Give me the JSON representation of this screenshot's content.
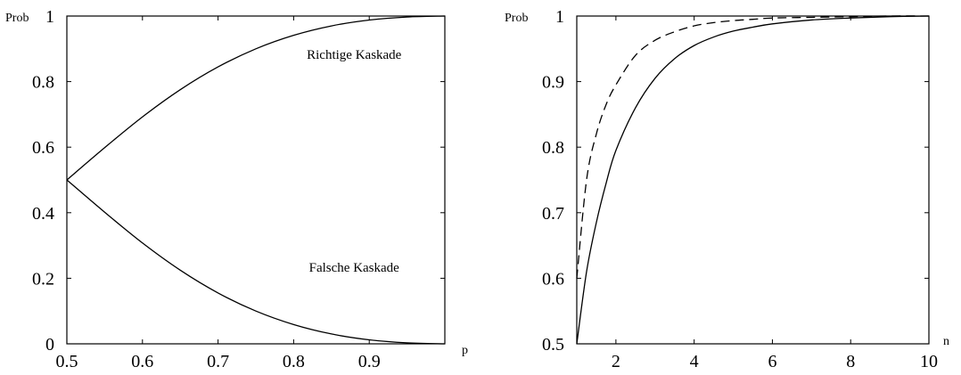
{
  "chart_data": [
    {
      "type": "line",
      "title": "",
      "xlabel": "p",
      "ylabel": "Prob",
      "xlim": [
        0.5,
        1.0
      ],
      "ylim": [
        0,
        1
      ],
      "xticks": [
        0.5,
        0.6,
        0.7,
        0.8,
        0.9
      ],
      "xtick_labels": [
        "0.5",
        "0.6",
        "0.7",
        "0.8",
        "0.9"
      ],
      "yticks": [
        0,
        0.2,
        0.4,
        0.6,
        0.8,
        1
      ],
      "ytick_labels": [
        "0",
        "0.2",
        "0.4",
        "0.6",
        "0.8",
        "1"
      ],
      "grid": false,
      "series": [
        {
          "x": [
            0.5,
            0.55,
            0.6,
            0.65,
            0.7,
            0.75,
            0.8,
            0.85,
            0.9,
            0.95,
            1.0
          ],
          "values": [
            0.5,
            0.5985,
            0.6923,
            0.7753,
            0.8448,
            0.9,
            0.9412,
            0.9699,
            0.9878,
            0.997,
            1.0
          ],
          "style": "solid"
        },
        {
          "x": [
            0.5,
            0.55,
            0.6,
            0.65,
            0.7,
            0.75,
            0.8,
            0.85,
            0.9,
            0.95,
            1.0
          ],
          "values": [
            0.5,
            0.4015,
            0.3077,
            0.2247,
            0.1552,
            0.1,
            0.0588,
            0.0301,
            0.0122,
            0.003,
            0.0
          ],
          "style": "solid"
        }
      ],
      "annotations": [
        {
          "text": "Richtige Kaskade",
          "x": 0.88,
          "y": 0.87
        },
        {
          "text": "Falsche Kaskade",
          "x": 0.88,
          "y": 0.22
        }
      ]
    },
    {
      "type": "line",
      "title": "",
      "xlabel": "n",
      "ylabel": "Prob",
      "xlim": [
        1,
        10
      ],
      "ylim": [
        0.5,
        1
      ],
      "xticks": [
        2,
        4,
        6,
        8,
        10
      ],
      "xtick_labels": [
        "2",
        "4",
        "6",
        "8",
        "10"
      ],
      "yticks": [
        0.5,
        0.6,
        0.7,
        0.8,
        0.9,
        1
      ],
      "ytick_labels": [
        "0.5",
        "0.6",
        "0.7",
        "0.8",
        "0.9",
        "1"
      ],
      "grid": false,
      "series": [
        {
          "x": [
            1,
            1.25,
            1.5,
            1.75,
            2,
            2.5,
            3,
            3.5,
            4,
            4.5,
            5,
            5.5,
            6,
            7,
            8,
            9,
            10
          ],
          "values": [
            0.5,
            0.61,
            0.685,
            0.745,
            0.795,
            0.86,
            0.905,
            0.935,
            0.955,
            0.968,
            0.977,
            0.983,
            0.988,
            0.994,
            0.997,
            0.999,
            1.0
          ],
          "style": "solid"
        },
        {
          "x": [
            1,
            1.25,
            1.5,
            1.75,
            2,
            2.5,
            3,
            3.5,
            4,
            4.5,
            5,
            5.5,
            6,
            7,
            8,
            9,
            10
          ],
          "values": [
            0.6,
            0.75,
            0.82,
            0.865,
            0.895,
            0.94,
            0.963,
            0.976,
            0.985,
            0.99,
            0.993,
            0.995,
            0.997,
            0.998,
            0.999,
            1.0,
            1.0
          ],
          "style": "dashed"
        }
      ],
      "annotations": []
    }
  ]
}
